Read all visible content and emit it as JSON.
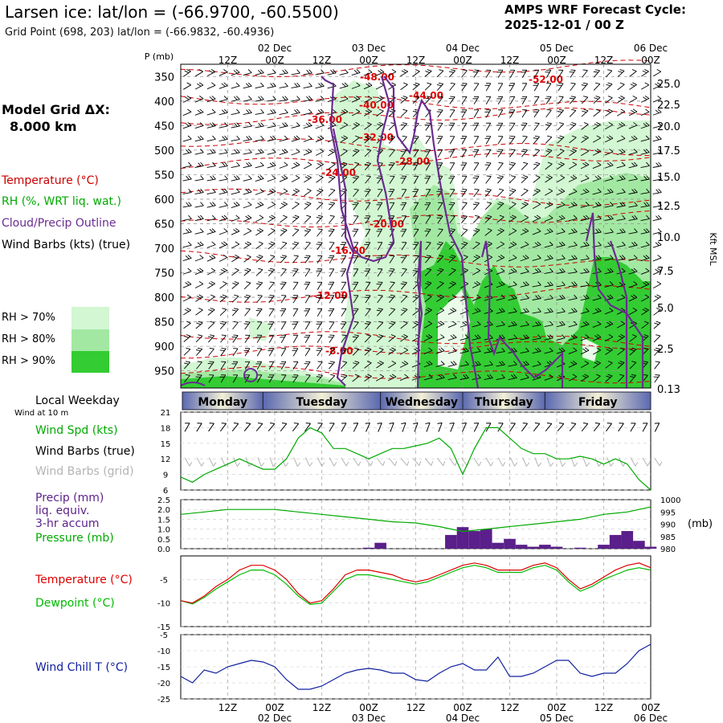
{
  "header": {
    "title": "Larsen ice:  lat/lon = (-66.9700, -60.5500)",
    "grid_point": "Grid Point (698, 203) lat/lon = (-66.9832, -60.4936)",
    "forecast_title": "AMPS WRF Forecast Cycle:",
    "forecast_cycle": "2025-12-01 / 00  Z"
  },
  "model_grid": {
    "label": "Model Grid ΔX:",
    "value": "8.000 km"
  },
  "legend": {
    "temperature": {
      "text": "Temperature (°C)",
      "color": "#cc0000"
    },
    "rh": {
      "text": "RH (%, WRT liq. wat.)",
      "color": "#00aa00"
    },
    "cloud": {
      "text": "Cloud/Precip Outline",
      "color": "#6a2c91"
    },
    "wind": {
      "text": "Wind Barbs (kts) (true)",
      "color": "#000000"
    }
  },
  "rh_legend": [
    {
      "label": "RH > 70%",
      "color": "#d2f7d2"
    },
    {
      "label": "RH > 80%",
      "color": "#a2e8a2"
    },
    {
      "label": "RH > 90%",
      "color": "#33cc33"
    }
  ],
  "time_axis": {
    "top_ticks": [
      "12Z",
      "00Z",
      "12Z",
      "00Z",
      "12Z",
      "00Z",
      "12Z",
      "00Z",
      "12Z",
      "00Z"
    ],
    "top_dates": [
      "02 Dec",
      "03 Dec",
      "04 Dec",
      "05 Dec",
      "06 Dec"
    ],
    "bottom_ticks": [
      "12Z",
      "00Z",
      "12Z",
      "00Z",
      "12Z",
      "00Z",
      "12Z",
      "00Z",
      "12Z",
      "00Z"
    ],
    "bottom_dates": [
      "02 Dec",
      "03 Dec",
      "04 Dec",
      "05 Dec",
      "06 Dec"
    ]
  },
  "profile": {
    "p_label": "P (mb)",
    "right_label": "Kft MSL",
    "pressure_ticks": [
      "350",
      "400",
      "450",
      "500",
      "550",
      "600",
      "650",
      "700",
      "750",
      "800",
      "850",
      "900",
      "950"
    ],
    "height_ticks": [
      "25.0",
      "22.5",
      "20.0",
      "17.5",
      "15.0",
      "12.5",
      "10.0",
      "7.5",
      "5.0",
      "2.5",
      "0.13"
    ],
    "temp_labels": [
      "-48.00",
      "-52.00",
      "-44.00",
      "-40.00",
      "-36.00",
      "-32.00",
      "-28.00",
      "-24.00",
      "-20.00",
      "-16.00",
      "-12.00",
      "-8.00"
    ]
  },
  "weekdays": {
    "title": "Local Weekday",
    "days": [
      "Monday",
      "Tuesday",
      "Wednesday",
      "Thursday",
      "Friday"
    ]
  },
  "wind_panel": {
    "subtitle": "Wind at 10 m",
    "labels": {
      "spd": "Wind Spd (kts)",
      "barbs_true": "Wind Barbs (true)",
      "barbs_grid": "Wind Barbs (grid)"
    },
    "label_colors": {
      "spd": "#00aa00",
      "barbs_true": "#000000",
      "barbs_grid": "#b4b4b4"
    },
    "yticks": [
      "21",
      "18",
      "15",
      "12",
      "9",
      "6"
    ]
  },
  "precip_panel": {
    "labels": [
      "Precip (mm)",
      "liq. equiv.",
      "3-hr accum"
    ],
    "label_color": "#5a1f8a",
    "pressure_label": "Pressure (mb)",
    "pressure_color": "#00aa00",
    "left_ticks": [
      "2.5",
      "2.0",
      "1.5",
      "1.0",
      "0.5",
      "0.0"
    ],
    "right_ticks": [
      "1000",
      "995",
      "990",
      "985",
      "980"
    ],
    "right_unit": "(mb)"
  },
  "temp_panel": {
    "labels": [
      "Temperature (°C)",
      "Dewpoint (°C)"
    ],
    "colors": [
      "#dd0000",
      "#00bb00"
    ],
    "yticks": [
      "-5",
      "-10",
      "-15"
    ]
  },
  "chill_panel": {
    "label": "Wind Chill T (°C)",
    "color": "#1020a0",
    "yticks": [
      "-5",
      "-10",
      "-15",
      "-20",
      "-25"
    ]
  },
  "chart_data": [
    {
      "type": "line",
      "title": "Wind Spd (kts)",
      "x_hours": [
        0,
        3,
        6,
        9,
        12,
        15,
        18,
        21,
        24,
        27,
        30,
        33,
        36,
        39,
        42,
        45,
        48,
        51,
        54,
        57,
        60,
        63,
        66,
        69,
        72,
        75,
        78,
        81,
        84,
        87,
        90,
        93,
        96,
        99,
        102,
        105,
        108,
        111,
        114,
        117,
        120
      ],
      "values": [
        8.5,
        7.5,
        9,
        10,
        11,
        12,
        11,
        10,
        10,
        12,
        16,
        18,
        17,
        14,
        14,
        13,
        12,
        13,
        14,
        14,
        14.5,
        15,
        16,
        14,
        9,
        14,
        18,
        18,
        16,
        14,
        13,
        13,
        12,
        12,
        12.5,
        12,
        11,
        12,
        11,
        8,
        6
      ],
      "ylim": [
        6,
        21
      ]
    },
    {
      "type": "bar",
      "title": "Precip (mm) 3-hr accum",
      "x_hours": [
        0,
        3,
        6,
        9,
        12,
        15,
        18,
        21,
        24,
        27,
        30,
        33,
        36,
        39,
        42,
        45,
        48,
        51,
        54,
        57,
        60,
        63,
        66,
        69,
        72,
        75,
        78,
        81,
        84,
        87,
        90,
        93,
        96,
        99,
        102,
        105,
        108,
        111,
        114,
        117,
        120
      ],
      "values": [
        0,
        0,
        0,
        0,
        0,
        0,
        0,
        0,
        0,
        0,
        0,
        0,
        0,
        0,
        0,
        0,
        0.05,
        0.3,
        0,
        0,
        0,
        0,
        0,
        0.7,
        1.1,
        0.9,
        1.0,
        0.3,
        0.5,
        0.2,
        0.1,
        0.2,
        0.1,
        0,
        0.05,
        0,
        0.2,
        0.7,
        0.9,
        0.4,
        0.1
      ],
      "ylim": [
        0,
        2.5
      ]
    },
    {
      "type": "line",
      "title": "Pressure (mb)",
      "x_hours": [
        0,
        6,
        12,
        18,
        24,
        30,
        36,
        42,
        48,
        54,
        60,
        66,
        72,
        78,
        84,
        90,
        96,
        102,
        108,
        114,
        120
      ],
      "values": [
        994,
        995,
        996,
        996,
        996,
        995,
        994,
        993,
        992,
        991,
        990.5,
        989,
        987,
        988,
        989,
        990,
        991,
        992,
        994,
        995,
        997
      ],
      "ylim": [
        980,
        1000
      ]
    },
    {
      "type": "line",
      "title": "Temperature / Dewpoint (°C)",
      "x_hours": [
        0,
        3,
        6,
        9,
        12,
        15,
        18,
        21,
        24,
        27,
        30,
        33,
        36,
        39,
        42,
        45,
        48,
        51,
        54,
        57,
        60,
        63,
        66,
        69,
        72,
        75,
        78,
        81,
        84,
        87,
        90,
        93,
        96,
        99,
        102,
        105,
        108,
        111,
        114,
        117,
        120
      ],
      "series": [
        {
          "name": "Temperature (°C)",
          "values": [
            -9.5,
            -10,
            -8.5,
            -6.5,
            -5,
            -3,
            -2,
            -2,
            -3,
            -5,
            -8,
            -10,
            -9.5,
            -7,
            -4,
            -3,
            -3,
            -3.5,
            -4,
            -5,
            -5.5,
            -5,
            -4,
            -3,
            -2,
            -1.5,
            -2,
            -3,
            -3,
            -3,
            -2,
            -1.5,
            -2.5,
            -5,
            -7,
            -6,
            -4.5,
            -3,
            -2,
            -1.5,
            -2.5
          ]
        },
        {
          "name": "Dewpoint (°C)",
          "values": [
            -9.5,
            -10.2,
            -8.8,
            -7,
            -5.5,
            -4,
            -3,
            -3,
            -4,
            -6,
            -8.5,
            -10.3,
            -10,
            -7.5,
            -5,
            -4,
            -4,
            -4.5,
            -5,
            -5.5,
            -6,
            -5.5,
            -4.5,
            -3.5,
            -2.5,
            -2,
            -2.5,
            -3.5,
            -3.5,
            -3.5,
            -2.5,
            -2,
            -3,
            -5.5,
            -7.5,
            -6.5,
            -5,
            -4,
            -3,
            -2.5,
            -3
          ]
        }
      ],
      "ylim": [
        -15,
        0
      ]
    },
    {
      "type": "line",
      "title": "Wind Chill T (°C)",
      "x_hours": [
        0,
        3,
        6,
        9,
        12,
        15,
        18,
        21,
        24,
        27,
        30,
        33,
        36,
        39,
        42,
        45,
        48,
        51,
        54,
        57,
        60,
        63,
        66,
        69,
        72,
        75,
        78,
        81,
        84,
        87,
        90,
        93,
        96,
        99,
        102,
        105,
        108,
        111,
        114,
        117,
        120
      ],
      "values": [
        -18,
        -20,
        -16,
        -17,
        -15,
        -14,
        -13,
        -13.5,
        -15,
        -19,
        -22,
        -22,
        -21,
        -19,
        -17,
        -16,
        -15.5,
        -16,
        -17,
        -17,
        -19,
        -19.5,
        -17,
        -15,
        -14,
        -16,
        -16,
        -12,
        -18,
        -18,
        -17,
        -15,
        -13,
        -13,
        -17,
        -18,
        -17,
        -17,
        -14,
        -10,
        -8
      ],
      "ylim": [
        -25,
        -5
      ]
    }
  ]
}
